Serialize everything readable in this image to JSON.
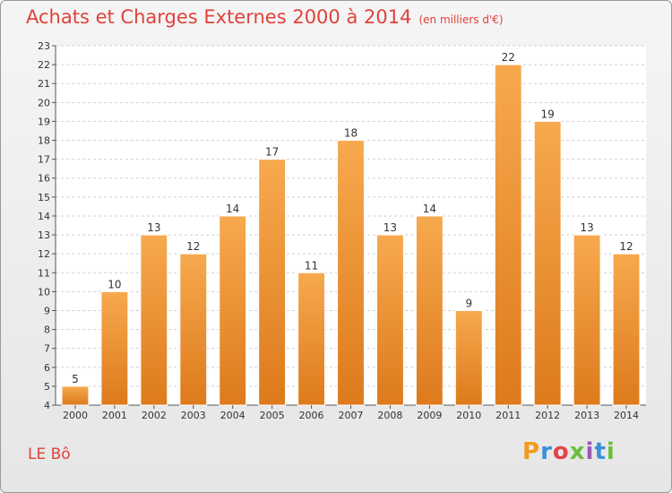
{
  "title": "Achats et Charges Externes 2000 à 2014",
  "title_unit": "(en milliers d'€)",
  "commune": "LE Bô",
  "logo": "Proxiti",
  "colors": {
    "title": "#e0413a",
    "bar_top": "#f7a94e",
    "bar_bottom": "#dd7a1c",
    "grid": "#cfcfcf"
  },
  "chart_data": {
    "type": "bar",
    "categories": [
      "2000",
      "2001",
      "2002",
      "2003",
      "2004",
      "2005",
      "2006",
      "2007",
      "2008",
      "2009",
      "2010",
      "2011",
      "2012",
      "2013",
      "2014"
    ],
    "values": [
      5,
      10,
      13,
      12,
      14,
      17,
      11,
      18,
      13,
      14,
      9,
      22,
      19,
      13,
      12
    ],
    "ylim": [
      4,
      23
    ],
    "yticks": [
      4,
      5,
      6,
      7,
      8,
      9,
      10,
      11,
      12,
      13,
      14,
      15,
      16,
      17,
      18,
      19,
      20,
      21,
      22,
      23
    ],
    "grid": true,
    "xlabel": "",
    "ylabel": ""
  }
}
